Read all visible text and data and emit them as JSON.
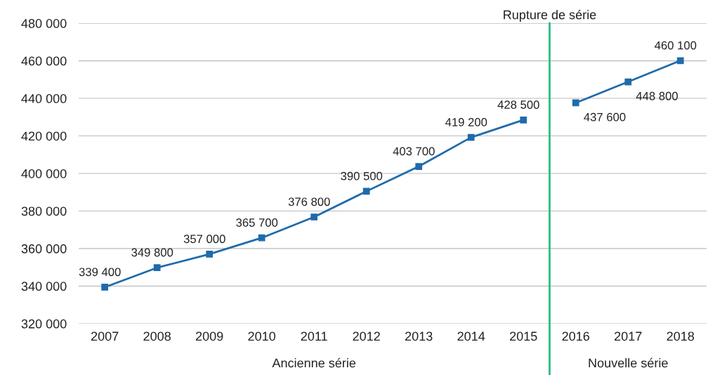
{
  "chart_data": {
    "type": "line",
    "series": [
      {
        "color": "#1f6bab",
        "x": [
          2007,
          2008,
          2009,
          2010,
          2011,
          2012,
          2013,
          2014,
          2015
        ],
        "values": [
          339400,
          349800,
          357000,
          365700,
          376800,
          390500,
          403700,
          419200,
          428500
        ],
        "value_labels": [
          "339 400",
          "349 800",
          "357 000",
          "365 700",
          "376 800",
          "390 500",
          "403 700",
          "419 200",
          "428 500"
        ]
      },
      {
        "color": "#1f6bab",
        "x": [
          2016,
          2017,
          2018
        ],
        "values": [
          437600,
          448800,
          460100
        ],
        "value_labels": [
          "437 600",
          "448 800",
          "460 100"
        ]
      }
    ],
    "xlim": [
      2006.5,
      2018.5
    ],
    "xticks": [
      2007,
      2008,
      2009,
      2010,
      2011,
      2012,
      2013,
      2014,
      2015,
      2016,
      2017,
      2018
    ],
    "ylim": [
      320000,
      480000
    ],
    "yticks": [
      {
        "value": 320000,
        "label": "320 000"
      },
      {
        "value": 340000,
        "label": "340 000"
      },
      {
        "value": 360000,
        "label": "360 000"
      },
      {
        "value": 380000,
        "label": "380 000"
      },
      {
        "value": 400000,
        "label": "400 000"
      },
      {
        "value": 420000,
        "label": "420 000"
      },
      {
        "value": 440000,
        "label": "440 000"
      },
      {
        "value": 460000,
        "label": "460 000"
      },
      {
        "value": 480000,
        "label": "480 000"
      }
    ],
    "ref_lines": [
      {
        "axis": "x",
        "value": 2015.5,
        "label": "Rupture de série",
        "color": "#2bbd7e"
      }
    ],
    "annotations": [
      "Ancienne série",
      "Nouvelle série"
    ],
    "grid": "y",
    "marker": "square",
    "line_style": "solid",
    "legend": false
  }
}
